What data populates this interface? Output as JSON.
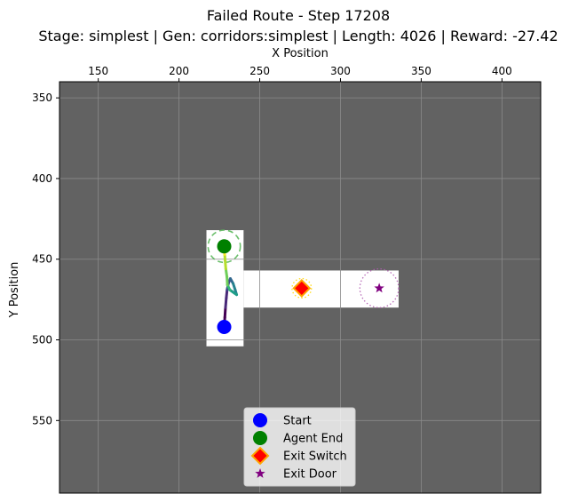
{
  "chart_data": {
    "type": "scatter",
    "title": "Failed Route - Step 17208",
    "subtitle": "Stage: simplest | Gen: corridors:simplest | Length: 4026 | Reward: -27.42",
    "xlabel": "X Position",
    "ylabel": "Y Position",
    "xaxis_position": "top",
    "y_inverted": true,
    "xlim": [
      126,
      424
    ],
    "ylim": [
      340,
      595
    ],
    "x_ticks": [
      150,
      200,
      250,
      300,
      350,
      400
    ],
    "y_ticks": [
      350,
      400,
      450,
      500,
      550
    ],
    "grid": true,
    "background_color": "#626262",
    "grid_color": "#8a8a8a",
    "floor_color": "#ffffff",
    "floor_regions": [
      {
        "x": [
          217,
          240
        ],
        "y": [
          432,
          504
        ]
      },
      {
        "x": [
          240,
          336
        ],
        "y": [
          457,
          480
        ]
      }
    ],
    "markers": [
      {
        "name": "Start",
        "x": 228,
        "y": 492,
        "shape": "circle",
        "color": "#0000ff"
      },
      {
        "name": "Agent End",
        "x": 228,
        "y": 442,
        "shape": "circle",
        "color": "#008000"
      },
      {
        "name": "Exit Switch",
        "x": 276,
        "y": 468,
        "shape": "diamond",
        "color": "#ff0000",
        "edge_color": "#ffa500"
      },
      {
        "name": "Exit Door",
        "x": 324,
        "y": 468,
        "shape": "star",
        "color": "#800080"
      }
    ],
    "radius_circles": [
      {
        "x": 228,
        "y": 442,
        "r": 10,
        "color": "#5cb85c",
        "style": "dashed"
      },
      {
        "x": 276,
        "y": 468,
        "r": 6,
        "color": "#ffd700",
        "style": "dotted"
      },
      {
        "x": 324,
        "y": 468,
        "r": 12,
        "color": "#b05cb0",
        "style": "dotted"
      }
    ],
    "trajectory_colormap": "viridis",
    "trajectory": [
      [
        228,
        492
      ],
      [
        228.4,
        486
      ],
      [
        228.8,
        480
      ],
      [
        229.3,
        474
      ],
      [
        229.8,
        469
      ],
      [
        230.6,
        465
      ],
      [
        231.8,
        462
      ],
      [
        233.5,
        465
      ],
      [
        234.8,
        469
      ],
      [
        235.7,
        472
      ],
      [
        234.3,
        471
      ],
      [
        231.5,
        469
      ],
      [
        230,
        466
      ],
      [
        229.7,
        461
      ],
      [
        229,
        456
      ],
      [
        228.6,
        451
      ],
      [
        228.3,
        447
      ],
      [
        228,
        442
      ]
    ],
    "legend": {
      "placement": "lower center",
      "entries": [
        "Start",
        "Agent End",
        "Exit Switch",
        "Exit Door"
      ]
    }
  }
}
